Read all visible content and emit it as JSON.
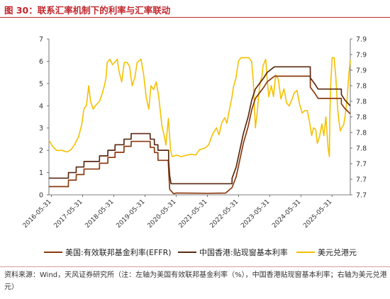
{
  "title": "图 30：联系汇率机制下的利率与汇率联动",
  "source_note": "资料来源：Wind，天风证券研究所（注：左轴为美国有效联邦基金利率（%），中国香港贴现窗基本利率；右轴为美元兑港元）",
  "colors": {
    "effr": "#8b3a0e",
    "hk": "#5a2a12",
    "usdhkd": "#f5c000",
    "accent": "#c1272d"
  },
  "chart_data": {
    "type": "line",
    "x_ticks": [
      "2016-05-31",
      "2017-05-31",
      "2018-05-31",
      "2019-05-31",
      "2020-05-31",
      "2021-05-31",
      "2022-05-31",
      "2023-05-31",
      "2024-05-31",
      "2025-05-31"
    ],
    "x_range": [
      "2016-05-01",
      "2025-12-31"
    ],
    "y_left": {
      "min": 0,
      "max": 7,
      "ticks": [
        "0",
        "1",
        "2",
        "3",
        "4",
        "5",
        "6",
        "7"
      ]
    },
    "y_right": {
      "min": 7.7,
      "max": 7.9,
      "ticks": [
        {
          "v": 7.7,
          "label": "7.7"
        },
        {
          "v": 7.72,
          "label": "7.7"
        },
        {
          "v": 7.74,
          "label": "7.7"
        },
        {
          "v": 7.76,
          "label": "7.8"
        },
        {
          "v": 7.78,
          "label": "7.8"
        },
        {
          "v": 7.8,
          "label": "7.8"
        },
        {
          "v": 7.82,
          "label": "7.8"
        },
        {
          "v": 7.84,
          "label": "7.8"
        },
        {
          "v": 7.86,
          "label": "7.9"
        },
        {
          "v": 7.88,
          "label": "7.9"
        },
        {
          "v": 7.9,
          "label": "7.9"
        }
      ]
    },
    "series": [
      {
        "name": "美国:有效联邦基金利率(EFFR)",
        "axis": "left",
        "key": "effr",
        "points": [
          [
            "2016-05-01",
            0.37
          ],
          [
            "2016-12-15",
            0.37
          ],
          [
            "2016-12-16",
            0.66
          ],
          [
            "2017-03-16",
            0.66
          ],
          [
            "2017-03-17",
            0.91
          ],
          [
            "2017-06-15",
            0.91
          ],
          [
            "2017-06-16",
            1.16
          ],
          [
            "2017-12-14",
            1.16
          ],
          [
            "2017-12-15",
            1.42
          ],
          [
            "2018-03-22",
            1.42
          ],
          [
            "2018-03-23",
            1.68
          ],
          [
            "2018-06-14",
            1.68
          ],
          [
            "2018-06-15",
            1.91
          ],
          [
            "2018-09-27",
            1.91
          ],
          [
            "2018-09-28",
            2.18
          ],
          [
            "2018-12-20",
            2.18
          ],
          [
            "2018-12-21",
            2.4
          ],
          [
            "2019-07-31",
            2.4
          ],
          [
            "2019-08-01",
            2.13
          ],
          [
            "2019-09-18",
            2.13
          ],
          [
            "2019-09-19",
            1.9
          ],
          [
            "2019-10-30",
            1.9
          ],
          [
            "2019-10-31",
            1.55
          ],
          [
            "2020-02-28",
            1.55
          ],
          [
            "2020-03-04",
            1.1
          ],
          [
            "2020-03-16",
            0.25
          ],
          [
            "2020-05-01",
            0.05
          ],
          [
            "2020-06-01",
            0.08
          ],
          [
            "2021-06-01",
            0.07
          ],
          [
            "2021-12-31",
            0.08
          ],
          [
            "2022-03-17",
            0.33
          ],
          [
            "2022-05-05",
            0.83
          ],
          [
            "2022-06-16",
            1.58
          ],
          [
            "2022-07-28",
            2.33
          ],
          [
            "2022-09-22",
            3.08
          ],
          [
            "2022-11-03",
            3.83
          ],
          [
            "2022-12-15",
            4.33
          ],
          [
            "2023-02-02",
            4.58
          ],
          [
            "2023-03-23",
            4.83
          ],
          [
            "2023-05-04",
            5.08
          ],
          [
            "2023-07-27",
            5.33
          ],
          [
            "2024-09-18",
            5.33
          ],
          [
            "2024-09-19",
            4.83
          ],
          [
            "2024-11-07",
            4.58
          ],
          [
            "2024-12-19",
            4.33
          ],
          [
            "2025-09-17",
            4.33
          ],
          [
            "2025-09-18",
            4.08
          ],
          [
            "2025-10-30",
            3.87
          ],
          [
            "2025-12-31",
            3.64
          ]
        ]
      },
      {
        "name": "中国香港:贴现窗基本利率",
        "axis": "left",
        "key": "hk",
        "points": [
          [
            "2016-05-01",
            0.75
          ],
          [
            "2016-12-15",
            0.75
          ],
          [
            "2016-12-16",
            1.0
          ],
          [
            "2017-03-16",
            1.0
          ],
          [
            "2017-03-17",
            1.25
          ],
          [
            "2017-06-15",
            1.25
          ],
          [
            "2017-06-16",
            1.5
          ],
          [
            "2017-12-14",
            1.5
          ],
          [
            "2017-12-15",
            1.75
          ],
          [
            "2018-03-22",
            1.75
          ],
          [
            "2018-03-23",
            2.0
          ],
          [
            "2018-06-14",
            2.0
          ],
          [
            "2018-06-15",
            2.25
          ],
          [
            "2018-09-27",
            2.25
          ],
          [
            "2018-09-28",
            2.5
          ],
          [
            "2018-12-20",
            2.5
          ],
          [
            "2018-12-21",
            2.75
          ],
          [
            "2019-07-31",
            2.75
          ],
          [
            "2019-08-01",
            2.5
          ],
          [
            "2019-09-18",
            2.5
          ],
          [
            "2019-09-19",
            2.25
          ],
          [
            "2019-10-30",
            2.25
          ],
          [
            "2019-10-31",
            2.0
          ],
          [
            "2020-03-03",
            2.0
          ],
          [
            "2020-03-04",
            1.5
          ],
          [
            "2020-03-16",
            0.86
          ],
          [
            "2020-04-01",
            0.5
          ],
          [
            "2022-03-16",
            0.5
          ],
          [
            "2022-03-17",
            0.75
          ],
          [
            "2022-05-04",
            1.25
          ],
          [
            "2022-06-15",
            2.0
          ],
          [
            "2022-07-27",
            2.75
          ],
          [
            "2022-09-21",
            3.5
          ],
          [
            "2022-11-02",
            4.25
          ],
          [
            "2022-12-14",
            4.75
          ],
          [
            "2023-02-01",
            5.0
          ],
          [
            "2023-03-22",
            5.25
          ],
          [
            "2023-05-03",
            5.5
          ],
          [
            "2023-07-26",
            5.75
          ],
          [
            "2024-09-18",
            5.75
          ],
          [
            "2024-09-19",
            5.25
          ],
          [
            "2024-11-07",
            5.0
          ],
          [
            "2024-12-19",
            4.75
          ],
          [
            "2025-09-17",
            4.75
          ],
          [
            "2025-09-18",
            4.5
          ],
          [
            "2025-10-30",
            4.25
          ],
          [
            "2025-12-31",
            4.0
          ]
        ]
      },
      {
        "name": "美元兑港元",
        "axis": "right",
        "key": "usdhkd",
        "points": [
          [
            "2016-05-01",
            7.77
          ],
          [
            "2016-06-15",
            7.762
          ],
          [
            "2016-08-01",
            7.757
          ],
          [
            "2016-10-01",
            7.757
          ],
          [
            "2016-12-01",
            7.755
          ],
          [
            "2017-01-15",
            7.758
          ],
          [
            "2017-03-01",
            7.765
          ],
          [
            "2017-04-15",
            7.775
          ],
          [
            "2017-05-20",
            7.79
          ],
          [
            "2017-06-15",
            7.81
          ],
          [
            "2017-07-15",
            7.815
          ],
          [
            "2017-08-10",
            7.84
          ],
          [
            "2017-09-01",
            7.82
          ],
          [
            "2017-10-01",
            7.81
          ],
          [
            "2017-11-01",
            7.815
          ],
          [
            "2017-12-15",
            7.82
          ],
          [
            "2018-01-15",
            7.83
          ],
          [
            "2018-02-10",
            7.84
          ],
          [
            "2018-03-01",
            7.85
          ],
          [
            "2018-03-15",
            7.87
          ],
          [
            "2018-04-15",
            7.874
          ],
          [
            "2018-05-15",
            7.867
          ],
          [
            "2018-06-10",
            7.87
          ],
          [
            "2018-07-10",
            7.874
          ],
          [
            "2018-08-01",
            7.858
          ],
          [
            "2018-09-01",
            7.845
          ],
          [
            "2018-10-01",
            7.87
          ],
          [
            "2018-11-01",
            7.87
          ],
          [
            "2018-12-01",
            7.865
          ],
          [
            "2019-01-01",
            7.84
          ],
          [
            "2019-02-01",
            7.85
          ],
          [
            "2019-03-01",
            7.87
          ],
          [
            "2019-04-15",
            7.874
          ],
          [
            "2019-05-15",
            7.855
          ],
          [
            "2019-06-15",
            7.825
          ],
          [
            "2019-07-15",
            7.81
          ],
          [
            "2019-08-10",
            7.84
          ],
          [
            "2019-09-10",
            7.835
          ],
          [
            "2019-10-10",
            7.845
          ],
          [
            "2019-11-10",
            7.825
          ],
          [
            "2019-12-15",
            7.789
          ],
          [
            "2020-01-10",
            7.777
          ],
          [
            "2020-02-01",
            7.764
          ],
          [
            "2020-02-20",
            7.787
          ],
          [
            "2020-03-01",
            7.798
          ],
          [
            "2020-03-25",
            7.758
          ],
          [
            "2020-04-15",
            7.749
          ],
          [
            "2020-06-01",
            7.751
          ],
          [
            "2020-08-01",
            7.749
          ],
          [
            "2020-10-01",
            7.751
          ],
          [
            "2020-12-01",
            7.752
          ],
          [
            "2021-01-15",
            7.751
          ],
          [
            "2021-03-01",
            7.758
          ],
          [
            "2021-05-01",
            7.76
          ],
          [
            "2021-06-15",
            7.764
          ],
          [
            "2021-08-01",
            7.778
          ],
          [
            "2021-09-15",
            7.786
          ],
          [
            "2021-10-15",
            7.777
          ],
          [
            "2021-11-15",
            7.792
          ],
          [
            "2021-12-20",
            7.799
          ],
          [
            "2022-01-15",
            7.792
          ],
          [
            "2022-02-15",
            7.81
          ],
          [
            "2022-03-15",
            7.825
          ],
          [
            "2022-04-01",
            7.838
          ],
          [
            "2022-05-01",
            7.85
          ],
          [
            "2022-06-01",
            7.872
          ],
          [
            "2022-07-01",
            7.876
          ],
          [
            "2022-10-01",
            7.876
          ],
          [
            "2022-11-01",
            7.871
          ],
          [
            "2022-11-20",
            7.847
          ],
          [
            "2022-12-15",
            7.786
          ],
          [
            "2023-01-05",
            7.805
          ],
          [
            "2023-01-20",
            7.825
          ],
          [
            "2023-02-10",
            7.845
          ],
          [
            "2023-03-01",
            7.851
          ],
          [
            "2023-03-15",
            7.866
          ],
          [
            "2023-04-15",
            7.874
          ],
          [
            "2023-05-01",
            7.85
          ],
          [
            "2023-05-20",
            7.826
          ],
          [
            "2023-06-20",
            7.84
          ],
          [
            "2023-07-15",
            7.826
          ],
          [
            "2023-08-10",
            7.854
          ],
          [
            "2023-09-10",
            7.848
          ],
          [
            "2023-10-10",
            7.823
          ],
          [
            "2023-11-15",
            7.836
          ],
          [
            "2023-12-15",
            7.818
          ],
          [
            "2024-01-15",
            7.814
          ],
          [
            "2024-02-15",
            7.822
          ],
          [
            "2024-03-15",
            7.831
          ],
          [
            "2024-04-15",
            7.834
          ],
          [
            "2024-05-15",
            7.817
          ],
          [
            "2024-06-15",
            7.805
          ],
          [
            "2024-07-15",
            7.808
          ],
          [
            "2024-08-15",
            7.808
          ],
          [
            "2024-09-15",
            7.79
          ],
          [
            "2024-10-05",
            7.776
          ],
          [
            "2024-10-25",
            7.786
          ],
          [
            "2024-11-20",
            7.784
          ],
          [
            "2024-12-10",
            7.766
          ],
          [
            "2025-01-05",
            7.775
          ],
          [
            "2025-02-01",
            7.791
          ],
          [
            "2025-02-25",
            7.776
          ],
          [
            "2025-03-20",
            7.8
          ],
          [
            "2025-04-15",
            7.76
          ],
          [
            "2025-04-30",
            7.749
          ],
          [
            "2025-05-05",
            7.8
          ],
          [
            "2025-05-15",
            7.84
          ],
          [
            "2025-06-01",
            7.876
          ],
          [
            "2025-06-25",
            7.876
          ],
          [
            "2025-07-15",
            7.85
          ],
          [
            "2025-08-05",
            7.81
          ],
          [
            "2025-08-20",
            7.795
          ],
          [
            "2025-09-05",
            7.782
          ],
          [
            "2025-09-25",
            7.787
          ],
          [
            "2025-10-15",
            7.79
          ],
          [
            "2025-11-05",
            7.805
          ],
          [
            "2025-11-25",
            7.825
          ],
          [
            "2025-12-15",
            7.856
          ],
          [
            "2025-12-31",
            7.873
          ]
        ]
      }
    ],
    "legend": [
      "美国:有效联邦基金利率(EFFR)",
      "中国香港:贴现窗基本利率",
      "美元兑港元"
    ],
    "legend_placement": "bottom",
    "grid": false
  }
}
